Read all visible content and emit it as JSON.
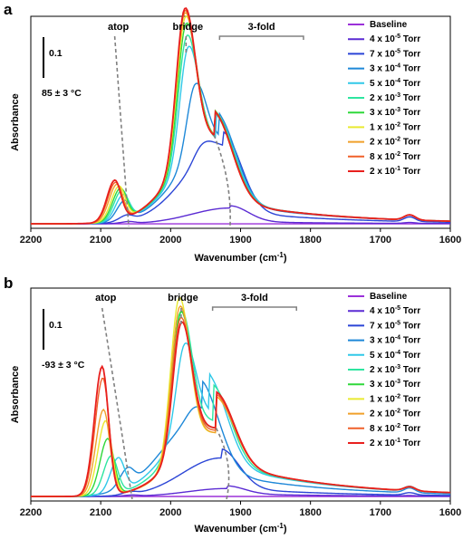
{
  "chart_data": [
    {
      "panel": "a",
      "type": "line",
      "ylabel": "Absorbance",
      "xlabel": "Wavenumber (cm",
      "xlabel_sup": "-1",
      "xlabel_end": ")",
      "xlim": [
        2200,
        1600
      ],
      "xticks": [
        2200,
        2100,
        2000,
        1900,
        1800,
        1700,
        1600
      ],
      "scale_bar": "0.1",
      "temperature": "85 ± 3 °C",
      "regions": [
        {
          "label": "atop",
          "x": 2080,
          "x_low": 2060
        },
        {
          "label": "bridge",
          "x": 1978,
          "x_low": 1978
        },
        {
          "label": "3-fold",
          "x_from": 1930,
          "x_to": 1810
        }
      ],
      "legend": [
        "Baseline",
        "4 x 10-5 Torr",
        "7 x 10-5 Torr",
        "3 x 10-4 Torr",
        "5 x 10-4 Torr",
        "2 x 10-3 Torr",
        "3 x 10-3 Torr",
        "1 x 10-2 Torr",
        "2 x 10-2 Torr",
        "8 x 10-2 Torr",
        "2 x 10-1 Torr"
      ],
      "legend_parts": [
        {
          "m": "Baseline",
          "e": ""
        },
        {
          "m": "4 x 10",
          "e": "-5"
        },
        {
          "m": "7 x 10",
          "e": "-5"
        },
        {
          "m": "3 x 10",
          "e": "-4"
        },
        {
          "m": "5 x 10",
          "e": "-4"
        },
        {
          "m": "2 x 10",
          "e": "-3"
        },
        {
          "m": "3 x 10",
          "e": "-3"
        },
        {
          "m": "1 x 10",
          "e": "-2"
        },
        {
          "m": "2 x 10",
          "e": "-2"
        },
        {
          "m": "8 x 10",
          "e": "-2"
        },
        {
          "m": "2 x 10",
          "e": "-1"
        }
      ],
      "unit": " Torr",
      "series_params": [
        {
          "atop": 0,
          "atop_c": 2060,
          "bridge": 0,
          "bridge_c": 1960,
          "fold": 0,
          "fold_c": 1915,
          "tail": 0
        },
        {
          "atop": 0.008,
          "atop_c": 2060,
          "bridge": 0,
          "bridge_c": 1960,
          "fold": 0.07,
          "fold_c": 1915,
          "tail": 0.01
        },
        {
          "atop": 0.025,
          "atop_c": 2063,
          "bridge": 0.06,
          "bridge_c": 1955,
          "fold": 0.34,
          "fold_c": 1925,
          "tail": 0.06
        },
        {
          "atop": 0.085,
          "atop_c": 2066,
          "bridge": 0.31,
          "bridge_c": 1965,
          "fold": 0.37,
          "fold_c": 1932,
          "tail": 0.1
        },
        {
          "atop": 0.11,
          "atop_c": 2068,
          "bridge": 0.5,
          "bridge_c": 1975,
          "fold": 0.37,
          "fold_c": 1935,
          "tail": 0.11
        },
        {
          "atop": 0.13,
          "atop_c": 2070,
          "bridge": 0.55,
          "bridge_c": 1977,
          "fold": 0.37,
          "fold_c": 1937,
          "tail": 0.11
        },
        {
          "atop": 0.14,
          "atop_c": 2072,
          "bridge": 0.6,
          "bridge_c": 1978,
          "fold": 0.38,
          "fold_c": 1937,
          "tail": 0.11
        },
        {
          "atop": 0.15,
          "atop_c": 2074,
          "bridge": 0.63,
          "bridge_c": 1979,
          "fold": 0.38,
          "fold_c": 1938,
          "tail": 0.11
        },
        {
          "atop": 0.16,
          "atop_c": 2077,
          "bridge": 0.65,
          "bridge_c": 1980,
          "fold": 0.38,
          "fold_c": 1938,
          "tail": 0.11
        },
        {
          "atop": 0.17,
          "atop_c": 2079,
          "bridge": 0.66,
          "bridge_c": 1980,
          "fold": 0.38,
          "fold_c": 1938,
          "tail": 0.11
        },
        {
          "atop": 0.18,
          "atop_c": 2080,
          "bridge": 0.67,
          "bridge_c": 1980,
          "fold": 0.38,
          "fold_c": 1938,
          "tail": 0.11
        }
      ],
      "ylim": [
        -0.02,
        0.92
      ]
    },
    {
      "panel": "b",
      "type": "line",
      "ylabel": "Absorbance",
      "xlabel": "Wavenumber (cm",
      "xlabel_sup": "-1",
      "xlabel_end": ")",
      "xlim": [
        2200,
        1600
      ],
      "xticks": [
        2200,
        2100,
        2000,
        1900,
        1800,
        1700,
        1600
      ],
      "scale_bar": "0.1",
      "temperature": "-93 ± 3 °C",
      "regions": [
        {
          "label": "atop",
          "x": 2098,
          "x_low": 2055
        },
        {
          "label": "bridge",
          "x": 1985,
          "x_low": 1985
        },
        {
          "label": "3-fold",
          "x_from": 1940,
          "x_to": 1820
        }
      ],
      "legend": [
        "Baseline",
        "4 x 10-5 Torr",
        "7 x 10-5 Torr",
        "3 x 10-4 Torr",
        "5 x 10-4 Torr",
        "2 x 10-3 Torr",
        "3 x 10-3 Torr",
        "1 x 10-2 Torr",
        "2 x 10-2 Torr",
        "8 x 10-2 Torr",
        "2 x 10-1 Torr"
      ],
      "legend_parts": [
        {
          "m": "Baseline",
          "e": ""
        },
        {
          "m": "4 x 10",
          "e": "-5"
        },
        {
          "m": "7 x 10",
          "e": "-5"
        },
        {
          "m": "3 x 10",
          "e": "-4"
        },
        {
          "m": "5 x 10",
          "e": "-4"
        },
        {
          "m": "2 x 10",
          "e": "-3"
        },
        {
          "m": "3 x 10",
          "e": "-3"
        },
        {
          "m": "1 x 10",
          "e": "-2"
        },
        {
          "m": "2 x 10",
          "e": "-2"
        },
        {
          "m": "8 x 10",
          "e": "-2"
        },
        {
          "m": "2 x 10",
          "e": "-1"
        }
      ],
      "unit": " Torr",
      "series_params": [
        {
          "atop": 0,
          "atop_c": 2055,
          "bridge": 0,
          "bridge_c": 1960,
          "fold": 0,
          "fold_c": 1920,
          "tail": 0
        },
        {
          "atop": 0.005,
          "atop_c": 2055,
          "bridge": 0,
          "bridge_c": 1960,
          "fold": 0.035,
          "fold_c": 1920,
          "tail": 0.012
        },
        {
          "atop": 0.012,
          "atop_c": 2058,
          "bridge": 0,
          "bridge_c": 1960,
          "fold": 0.17,
          "fold_c": 1928,
          "tail": 0.04
        },
        {
          "atop": 0.075,
          "atop_c": 2062,
          "bridge": 0.05,
          "bridge_c": 1965,
          "fold": 0.35,
          "fold_c": 1955,
          "tail": 0.12
        },
        {
          "atop": 0.15,
          "atop_c": 2075,
          "bridge": 0.38,
          "bridge_c": 1980,
          "fold": 0.36,
          "fold_c": 1945,
          "tail": 0.16
        },
        {
          "atop": 0.17,
          "atop_c": 2085,
          "bridge": 0.58,
          "bridge_c": 1985,
          "fold": 0.33,
          "fold_c": 1940,
          "tail": 0.16
        },
        {
          "atop": 0.25,
          "atop_c": 2090,
          "bridge": 0.62,
          "bridge_c": 1986,
          "fold": 0.3,
          "fold_c": 1935,
          "tail": 0.16
        },
        {
          "atop": 0.33,
          "atop_c": 2093,
          "bridge": 0.7,
          "bridge_c": 1988,
          "fold": 0.28,
          "fold_c": 1935,
          "tail": 0.16
        },
        {
          "atop": 0.38,
          "atop_c": 2096,
          "bridge": 0.66,
          "bridge_c": 1987,
          "fold": 0.28,
          "fold_c": 1935,
          "tail": 0.16
        },
        {
          "atop": 0.52,
          "atop_c": 2097,
          "bridge": 0.6,
          "bridge_c": 1986,
          "fold": 0.29,
          "fold_c": 1935,
          "tail": 0.16
        },
        {
          "atop": 0.57,
          "atop_c": 2098,
          "bridge": 0.57,
          "bridge_c": 1985,
          "fold": 0.3,
          "fold_c": 1935,
          "tail": 0.16
        }
      ],
      "ylim": [
        -0.02,
        0.92
      ]
    }
  ],
  "colors": [
    "#9b30d9",
    "#5b2bd3",
    "#2b45d6",
    "#1e88d8",
    "#30c8e8",
    "#2ee5a0",
    "#2fd83a",
    "#e9ea30",
    "#f0a02a",
    "#f0602a",
    "#e8201e"
  ],
  "dashed_color": "#808080",
  "bracket_color": "#808080"
}
